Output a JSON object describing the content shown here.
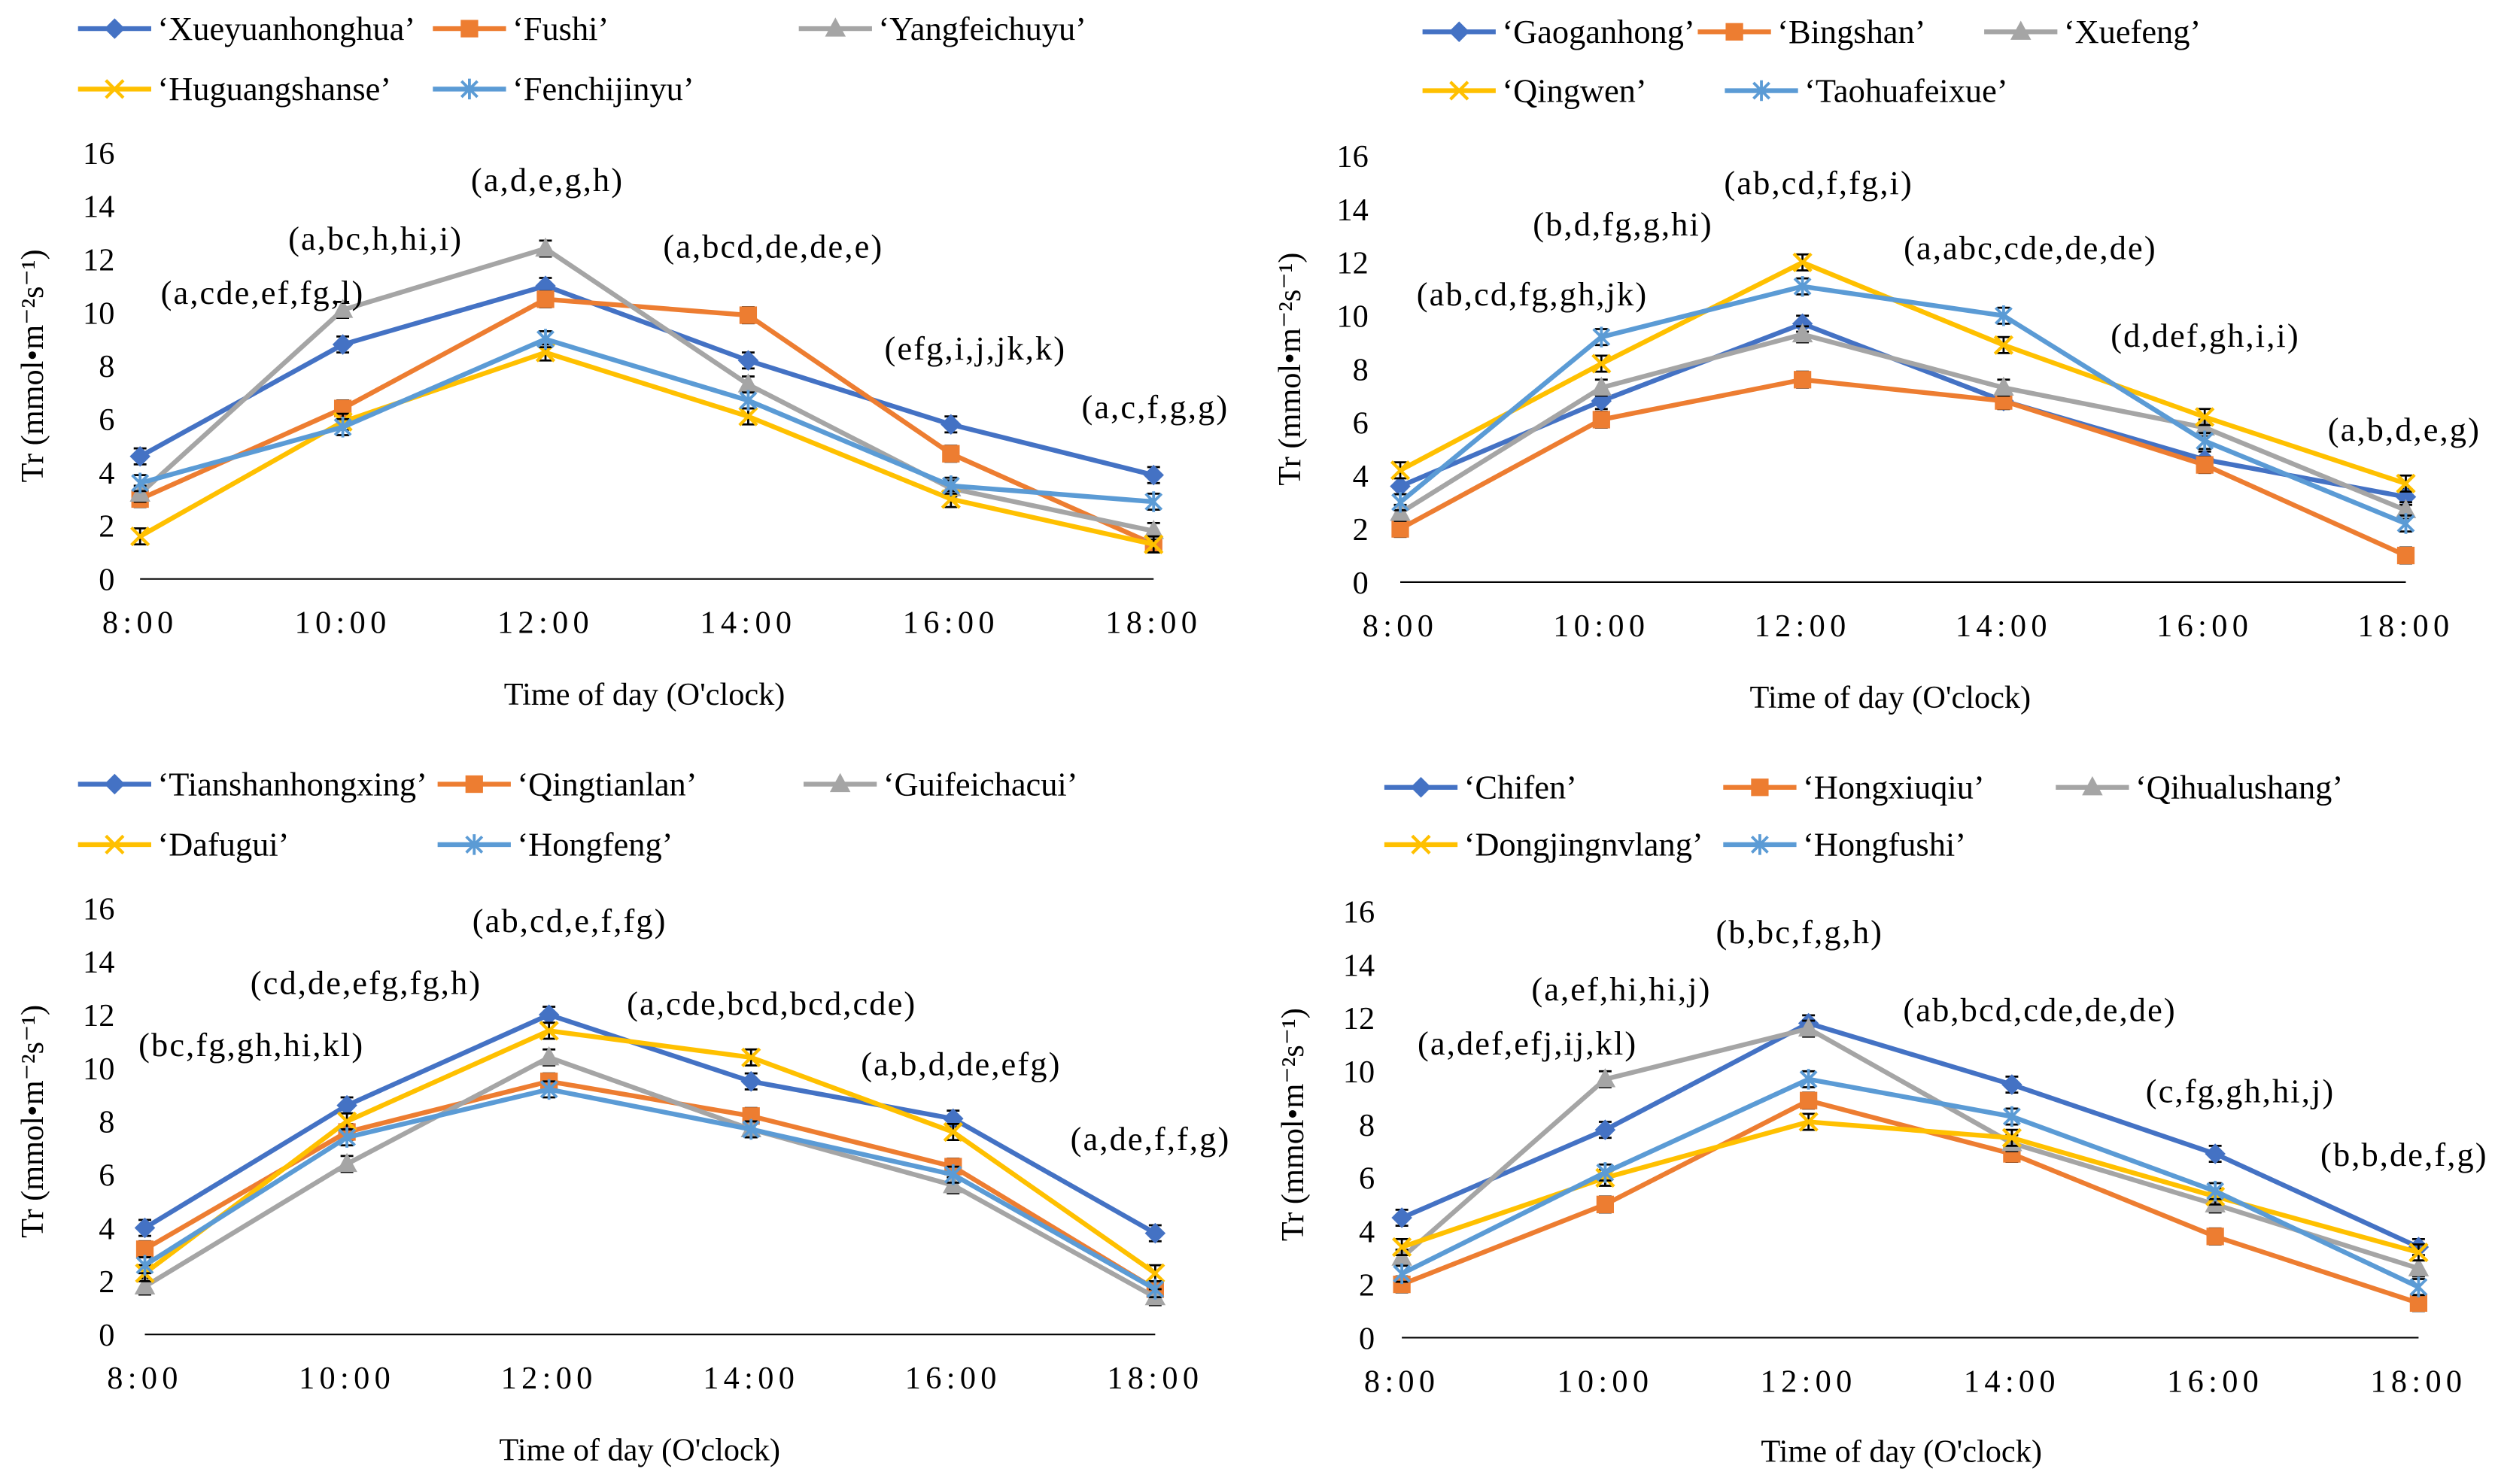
{
  "chart_data": [
    {
      "type": "line",
      "legend": "top",
      "grid": false,
      "xlabel": "Time of day (O'clock)",
      "ylabel": "Tr (mmol•m⁻²s⁻¹)",
      "categories": [
        "8:00",
        "10:00",
        "12:00",
        "14:00",
        "16:00",
        "18:00"
      ],
      "ylim": [
        0,
        16
      ],
      "yticks": [
        0,
        2,
        4,
        6,
        8,
        10,
        12,
        14,
        16
      ],
      "error": 0.3,
      "series": [
        {
          "name": "‘Xueyuanhonghua’",
          "color": "#4472C4",
          "values": [
            4.6,
            8.8,
            11.0,
            8.2,
            5.8,
            3.9
          ]
        },
        {
          "name": "‘Fushi’",
          "color": "#ED7D31",
          "values": [
            3.0,
            6.4,
            10.5,
            9.9,
            4.7,
            1.3
          ]
        },
        {
          "name": "‘Yangfeichuyu’",
          "color": "#A5A5A5",
          "values": [
            3.2,
            10.1,
            12.4,
            7.3,
            3.4,
            1.8
          ]
        },
        {
          "name": "‘Huguangshanse’",
          "color": "#FFC000",
          "values": [
            1.6,
            5.9,
            8.5,
            6.1,
            3.0,
            1.3
          ]
        },
        {
          "name": "‘Fenchijinyu’",
          "color": "#5B9BD5",
          "values": [
            3.6,
            5.7,
            9.0,
            6.7,
            3.5,
            2.9
          ]
        }
      ],
      "annotations": [
        "(a,cde,ef,fg,l)",
        "(a,bc,h,hi,i)",
        "(a,d,e,g,h)",
        "(a,bcd,de,de,e)",
        "(efg,i,j,jk,k)",
        "(a,c,f,g,g)"
      ]
    },
    {
      "type": "line",
      "legend": "top",
      "grid": false,
      "xlabel": "Time of day (O'clock)",
      "ylabel": "Tr (mmol•m⁻²s⁻¹)",
      "categories": [
        "8:00",
        "10:00",
        "12:00",
        "14:00",
        "16:00",
        "18:00"
      ],
      "ylim": [
        0,
        16
      ],
      "yticks": [
        0,
        2,
        4,
        6,
        8,
        10,
        12,
        14,
        16
      ],
      "error": 0.3,
      "series": [
        {
          "name": "‘Gaoganhong’",
          "color": "#4472C4",
          "values": [
            3.6,
            6.8,
            9.7,
            6.8,
            4.6,
            3.2
          ]
        },
        {
          "name": "‘Bingshan’",
          "color": "#ED7D31",
          "values": [
            2.0,
            6.1,
            7.6,
            6.8,
            4.4,
            1.0
          ]
        },
        {
          "name": "‘Xuefeng’",
          "color": "#A5A5A5",
          "values": [
            2.6,
            7.3,
            9.3,
            7.3,
            5.8,
            2.7
          ]
        },
        {
          "name": "‘Qingwen’",
          "color": "#FFC000",
          "values": [
            4.2,
            8.2,
            12.0,
            8.9,
            6.2,
            3.7
          ]
        },
        {
          "name": "‘Taohuafeixue’",
          "color": "#5B9BD5",
          "values": [
            3.0,
            9.2,
            11.1,
            10.0,
            5.3,
            2.2
          ]
        }
      ],
      "annotations": [
        "(ab,cd,fg,gh,jk)",
        "(b,d,fg,g,hi)",
        "(ab,cd,f,fg,i)",
        "(a,abc,cde,de,de)",
        "(d,def,gh,i,i)",
        "(a,b,d,e,g)"
      ]
    },
    {
      "type": "line",
      "legend": "top",
      "grid": false,
      "xlabel": "Time of day (O'clock)",
      "ylabel": "Tr (mmol•m⁻²s⁻¹)",
      "categories": [
        "8:00",
        "10:00",
        "12:00",
        "14:00",
        "16:00",
        "18:00"
      ],
      "ylim": [
        0,
        16
      ],
      "yticks": [
        0,
        2,
        4,
        6,
        8,
        10,
        12,
        14,
        16
      ],
      "error": 0.3,
      "series": [
        {
          "name": "‘Tianshanhongxing’",
          "color": "#4472C4",
          "values": [
            4.0,
            8.6,
            12.0,
            9.5,
            8.1,
            3.8
          ]
        },
        {
          "name": "‘Qingtianlan’",
          "color": "#ED7D31",
          "values": [
            3.2,
            7.6,
            9.5,
            8.2,
            6.3,
            1.7
          ]
        },
        {
          "name": "‘Guifeichacui’",
          "color": "#A5A5A5",
          "values": [
            1.8,
            6.4,
            10.4,
            7.7,
            5.6,
            1.4
          ]
        },
        {
          "name": "‘Dafugui’",
          "color": "#FFC000",
          "values": [
            2.3,
            8.0,
            11.4,
            10.4,
            7.6,
            2.3
          ]
        },
        {
          "name": "‘Hongfeng’",
          "color": "#5B9BD5",
          "values": [
            2.6,
            7.4,
            9.2,
            7.7,
            6.0,
            1.7
          ]
        }
      ],
      "annotations": [
        "(bc,fg,gh,hi,kl)",
        "(cd,de,efg,fg,h)",
        "(ab,cd,e,f,fg)",
        "(a,cde,bcd,bcd,cde)",
        "(a,b,d,de,efg)",
        "(a,de,f,f,g)"
      ]
    },
    {
      "type": "line",
      "legend": "top",
      "grid": false,
      "xlabel": "Time of day (O'clock)",
      "ylabel": "Tr (mmol•m⁻²s⁻¹)",
      "categories": [
        "8:00",
        "10:00",
        "12:00",
        "14:00",
        "16:00",
        "18:00"
      ],
      "ylim": [
        0,
        16
      ],
      "yticks": [
        0,
        2,
        4,
        6,
        8,
        10,
        12,
        14,
        16
      ],
      "error": 0.3,
      "series": [
        {
          "name": "‘Chifen’",
          "color": "#4472C4",
          "values": [
            4.5,
            7.8,
            11.8,
            9.5,
            6.9,
            3.4
          ]
        },
        {
          "name": "‘Hongxiuqiu’",
          "color": "#ED7D31",
          "values": [
            2.0,
            5.0,
            8.9,
            6.9,
            3.8,
            1.3
          ]
        },
        {
          "name": "‘Qihualushang’",
          "color": "#A5A5A5",
          "values": [
            3.0,
            9.7,
            11.6,
            7.3,
            5.0,
            2.6
          ]
        },
        {
          "name": "‘Dongjingnvlang’",
          "color": "#FFC000",
          "values": [
            3.4,
            6.0,
            8.1,
            7.5,
            5.3,
            3.2
          ]
        },
        {
          "name": "‘Hongfushi’",
          "color": "#5B9BD5",
          "values": [
            2.4,
            6.2,
            9.7,
            8.3,
            5.5,
            1.9
          ]
        }
      ],
      "annotations": [
        "(a,def,efj,ij,kl)",
        "(a,ef,hi,hi,j)",
        "(b,bc,f,g,h)",
        "(ab,bcd,cde,de,de)",
        "(c,fg,gh,hi,j)",
        "(b,b,de,f,g)"
      ]
    }
  ]
}
